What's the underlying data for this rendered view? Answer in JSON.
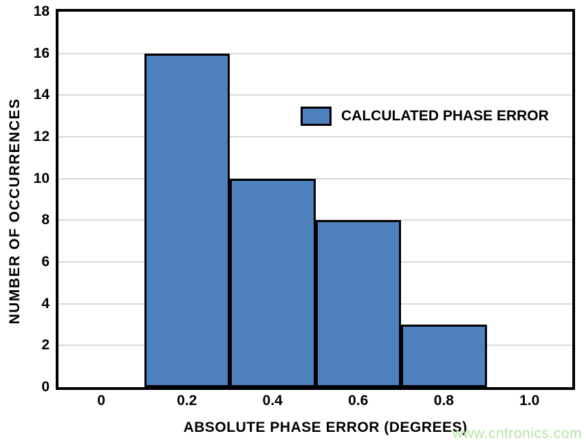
{
  "chart_data": {
    "type": "bar",
    "subtype": "histogram",
    "categories": [
      "0",
      "0.2",
      "0.4",
      "0.6",
      "0.8",
      "1.0"
    ],
    "values": [
      0,
      16,
      10,
      8,
      3,
      0
    ],
    "title": "",
    "xlabel": "ABSOLUTE PHASE ERROR (DEGREES)",
    "ylabel": "NUMBER OF OCCURRENCES",
    "ylim": [
      0,
      18
    ],
    "ytick_step": 2,
    "yticks": [
      0,
      2,
      4,
      6,
      8,
      10,
      12,
      14,
      16,
      18
    ],
    "grid": "horizontal",
    "legend": {
      "label": "CALCULATED PHASE ERROR",
      "position": "inside-upper-right"
    },
    "colors": {
      "bar_fill": "#4e81bd",
      "bar_border": "#000000",
      "gridline": "#d9d9d9",
      "axis_border": "#000000",
      "text": "#000000",
      "background": "#ffffff"
    }
  },
  "watermark": {
    "text": "www.cntronics.com",
    "color": "#b6e3a8"
  }
}
